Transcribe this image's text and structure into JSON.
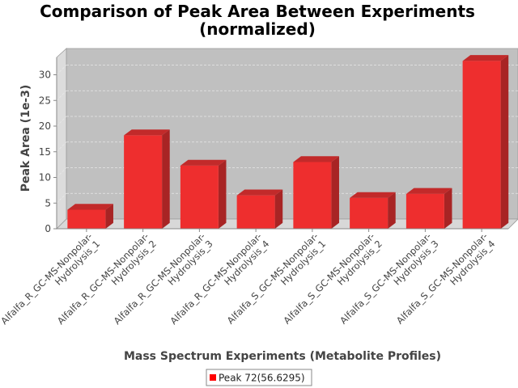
{
  "chart_data": {
    "type": "bar",
    "title_lines": [
      "Comparison of Peak Area Between Experiments",
      "(normalized)"
    ],
    "xlabel": "Mass Spectrum Experiments (Metabolite Profiles)",
    "ylabel": "Peak Area (1e-3)",
    "categories": [
      [
        "Alfalfa_R_GC-MS-Nonpolar-",
        "Hydrolysis_1"
      ],
      [
        "Alfalfa_R_GC-MS-Nonpolar-",
        "Hydrolysis_2"
      ],
      [
        "Alfalfa_R_GC-MS-Nonpolar-",
        "Hydrolysis_3"
      ],
      [
        "Alfalfa_R_GC-MS-Nonpolar-",
        "Hydrolysis_4"
      ],
      [
        "Alfalfa_S_GC-MS-Nonpolar-",
        "Hydrolysis_1"
      ],
      [
        "Alfalfa_S_GC-MS-Nonpolar-",
        "Hydrolysis_2"
      ],
      [
        "Alfalfa_S_GC-MS-Nonpolar-",
        "Hydrolysis_3"
      ],
      [
        "Alfalfa_S_GC-MS-Nonpolar-",
        "Hydrolysis_4"
      ]
    ],
    "series": [
      {
        "name": "Peak 72(56.6295)",
        "values": [
          3.7,
          18.2,
          12.3,
          6.5,
          13.0,
          6.0,
          6.8,
          32.7
        ]
      }
    ],
    "yticks": [
      "0",
      "5",
      "10",
      "15",
      "20",
      "25",
      "30"
    ],
    "ylim": [
      0,
      33.5
    ],
    "grid": true,
    "legend_position": "bottom",
    "colors": {
      "bar_front": "#ee2e2e",
      "bar_top": "#c22a2a",
      "bar_side": "#a82424",
      "plot_bg": "#c0c0c0",
      "wall_side": "#dcdcdc",
      "floor": "#d8d8d8",
      "grid": "#e8e8e8",
      "legend_swatch": "#ff0000"
    }
  }
}
